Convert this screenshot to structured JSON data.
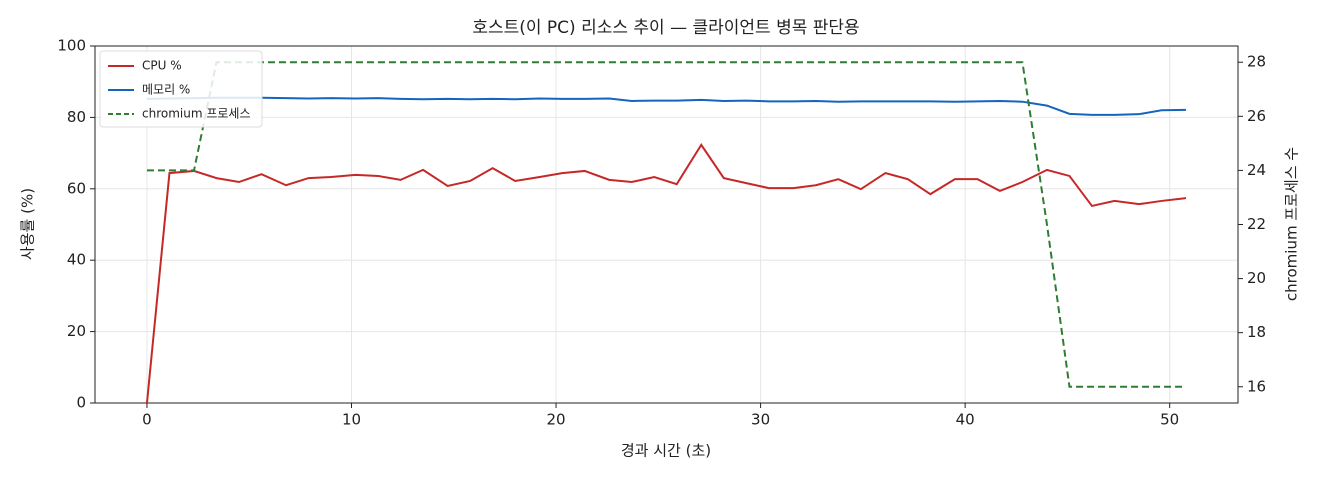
{
  "chart_data": {
    "type": "line",
    "title": "호스트(이 PC) 리소스 추이 — 클라이언트 병목 판단용",
    "x_label": "경과 시간 (초)",
    "y_label": "사용률 (%)",
    "y2_label": "chromium 프로세스 수",
    "x": [
      0,
      1.1,
      2.3,
      3.4,
      4.5,
      5.6,
      6.8,
      7.9,
      9.0,
      10.2,
      11.3,
      12.4,
      13.5,
      14.7,
      15.8,
      16.9,
      18.0,
      19.2,
      20.3,
      21.4,
      22.6,
      23.7,
      24.8,
      25.9,
      27.1,
      28.2,
      29.3,
      30.4,
      31.6,
      32.7,
      33.8,
      34.9,
      36.1,
      37.2,
      38.3,
      39.5,
      40.6,
      41.7,
      42.8,
      44.0,
      45.1,
      46.2,
      47.3,
      48.5,
      49.6,
      50.8
    ],
    "series": [
      {
        "name": "CPU %",
        "color": "#c62828",
        "linestyle": "solid",
        "values": [
          0,
          64.4,
          65,
          63,
          61.9,
          64.1,
          61,
          63,
          63.3,
          63.9,
          63.6,
          62.5,
          65.3,
          60.8,
          62.2,
          65.8,
          62.2,
          63.3,
          64.4,
          65,
          62.5,
          61.9,
          63.3,
          61.3,
          72.3,
          63,
          61.6,
          60.2,
          60.2,
          61,
          62.7,
          59.9,
          64.4,
          62.7,
          58.5,
          62.7,
          62.7,
          59.4,
          61.9,
          65.3,
          63.6,
          55.2,
          56.6,
          55.7,
          56.6,
          57.4
        ]
      },
      {
        "name": "메모리 %",
        "color": "#1565c0",
        "linestyle": "solid",
        "values": [
          85.2,
          85.3,
          85.4,
          85.5,
          85.5,
          85.5,
          85.4,
          85.3,
          85.4,
          85.3,
          85.4,
          85.2,
          85.1,
          85.2,
          85.1,
          85.2,
          85.1,
          85.3,
          85.2,
          85.2,
          85.3,
          84.6,
          84.7,
          84.7,
          84.9,
          84.6,
          84.7,
          84.5,
          84.5,
          84.6,
          84.4,
          84.5,
          84.5,
          84.5,
          84.5,
          84.4,
          84.5,
          84.6,
          84.4,
          83.3,
          81,
          80.7,
          80.7,
          80.9,
          82,
          82.1
        ]
      },
      {
        "name": "chromium 프로세스",
        "color": "#2e7d32",
        "linestyle": "dashed",
        "axis": "y2",
        "values": [
          24,
          24,
          24,
          28,
          28,
          28,
          28,
          28,
          28,
          28,
          28,
          28,
          28,
          28,
          28,
          28,
          28,
          28,
          28,
          28,
          28,
          28,
          28,
          28,
          28,
          28,
          28,
          28,
          28,
          28,
          28,
          28,
          28,
          28,
          28,
          28,
          28,
          28,
          28,
          22,
          16,
          16,
          16,
          16,
          16,
          16
        ]
      }
    ],
    "xlim": [
      -2.54,
      53.34
    ],
    "xticks": [
      0,
      10,
      20,
      30,
      40,
      50
    ],
    "ylim": [
      0,
      100
    ],
    "yticks": [
      0,
      20,
      40,
      60,
      80,
      100
    ],
    "y2lim": [
      15.4,
      28.6
    ],
    "y2ticks": [
      16,
      18,
      20,
      22,
      24,
      26,
      28
    ],
    "grid": true,
    "legend": "upper-left"
  }
}
